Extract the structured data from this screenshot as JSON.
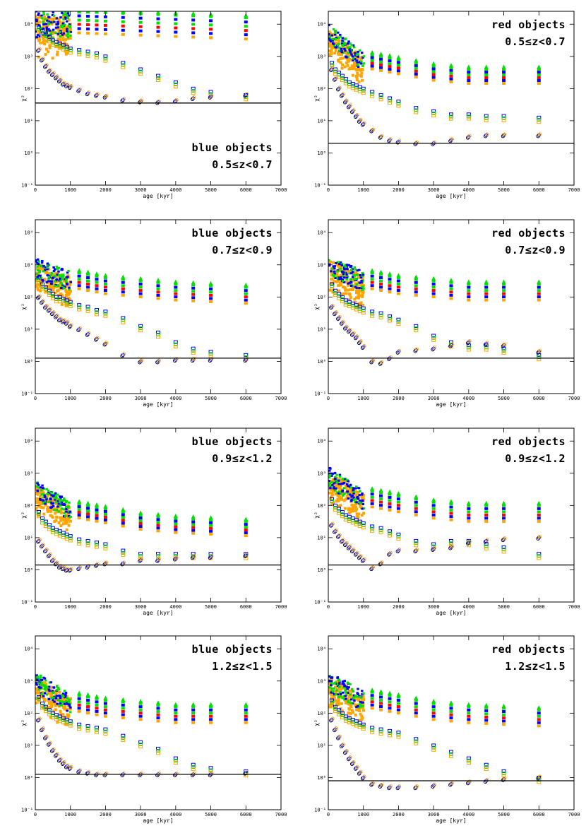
{
  "figure": {
    "xlabel": "age [kyr]",
    "ylabel": "χ²",
    "xticks": [
      0,
      1000,
      2000,
      3000,
      4000,
      5000,
      6000,
      7000
    ],
    "yticks": [
      {
        "v": -1,
        "text": "10⁻¹"
      },
      {
        "v": 0,
        "text": "10⁰"
      },
      {
        "v": 1,
        "text": "10¹"
      },
      {
        "v": 2,
        "text": "10²"
      },
      {
        "v": 3,
        "text": "10³"
      },
      {
        "v": 4,
        "text": "10⁴"
      }
    ],
    "colors": {
      "orange": "#FFA500",
      "blue": "#0000FF",
      "green": "#00E000",
      "red": "#FF0000",
      "black": "#000000"
    }
  },
  "chart_data": [
    {
      "type": "scatter",
      "id": "blue-0.5",
      "annotation_line1": "blue objects",
      "annotation_line2": "0.5≤z<0.7",
      "ann_pos": "bottom-right",
      "xlim": [
        0,
        7000
      ],
      "ylim_log10": [
        -1,
        4.4
      ],
      "hline_log10": 1.55,
      "upper_log10": [
        [
          0,
          4.4
        ],
        [
          1000,
          4.4
        ],
        [
          6000,
          4.2
        ]
      ],
      "upper_spread": 1.2,
      "track_x": [
        100,
        200,
        300,
        400,
        500,
        600,
        700,
        800,
        900,
        1000,
        1250,
        1500,
        1750,
        2000,
        2500,
        3000,
        3500,
        4000,
        4500,
        5000,
        6000
      ],
      "lower_log10": [
        3.2,
        2.9,
        2.7,
        2.55,
        2.45,
        2.35,
        2.25,
        2.15,
        2.1,
        2.05,
        1.95,
        1.85,
        1.8,
        1.75,
        1.65,
        1.6,
        1.58,
        1.62,
        1.7,
        1.75,
        1.8
      ],
      "mid_log10": [
        3.9,
        3.8,
        3.7,
        3.6,
        3.5,
        3.45,
        3.4,
        3.35,
        3.3,
        3.25,
        3.2,
        3.15,
        3.1,
        3.0,
        2.8,
        2.6,
        2.4,
        2.2,
        2.0,
        1.9,
        1.8
      ]
    },
    {
      "type": "scatter",
      "id": "red-0.5",
      "annotation_line1": "red objects",
      "annotation_line2": "0.5≤z<0.7",
      "ann_pos": "top-right",
      "xlim": [
        0,
        7000
      ],
      "ylim_log10": [
        -1,
        4.4
      ],
      "hline_log10": 0.3,
      "upper_log10": [
        [
          0,
          4.0
        ],
        [
          1000,
          3.1
        ],
        [
          2000,
          2.9
        ],
        [
          3000,
          2.7
        ],
        [
          4000,
          2.6
        ],
        [
          6000,
          2.6
        ]
      ],
      "upper_spread": 0.8,
      "track_x": [
        100,
        200,
        300,
        400,
        500,
        600,
        700,
        800,
        900,
        1000,
        1250,
        1500,
        1750,
        2000,
        2500,
        3000,
        3500,
        4000,
        4500,
        5000,
        6000
      ],
      "lower_log10": [
        2.6,
        2.3,
        2.0,
        1.8,
        1.6,
        1.45,
        1.3,
        1.15,
        1.0,
        0.9,
        0.7,
        0.5,
        0.4,
        0.35,
        0.3,
        0.3,
        0.4,
        0.5,
        0.55,
        0.55,
        0.55
      ],
      "mid_log10": [
        2.8,
        2.6,
        2.5,
        2.4,
        2.3,
        2.2,
        2.15,
        2.1,
        2.05,
        2.0,
        1.9,
        1.8,
        1.7,
        1.6,
        1.4,
        1.3,
        1.2,
        1.2,
        1.15,
        1.15,
        1.1
      ]
    },
    {
      "type": "scatter",
      "id": "blue-0.7",
      "annotation_line1": "blue objects",
      "annotation_line2": "0.7≤z<0.9",
      "ann_pos": "top-right",
      "xlim": [
        0,
        7000
      ],
      "ylim_log10": [
        -1,
        4.4
      ],
      "hline_log10": 0.1,
      "upper_log10": [
        [
          0,
          3.2
        ],
        [
          1000,
          2.8
        ],
        [
          2000,
          2.6
        ],
        [
          3000,
          2.5
        ],
        [
          4000,
          2.4
        ],
        [
          6000,
          2.3
        ]
      ],
      "upper_spread": 0.9,
      "track_x": [
        100,
        200,
        300,
        400,
        500,
        600,
        700,
        800,
        900,
        1000,
        1250,
        1500,
        1750,
        2000,
        2500,
        3000,
        3500,
        4000,
        4500,
        5000,
        6000
      ],
      "lower_log10": [
        2.0,
        1.85,
        1.7,
        1.6,
        1.5,
        1.4,
        1.3,
        1.25,
        1.2,
        1.1,
        1.0,
        0.85,
        0.7,
        0.55,
        0.2,
        0.0,
        0.0,
        0.05,
        0.05,
        0.05,
        0.05
      ],
      "mid_log10": [
        2.6,
        2.4,
        2.3,
        2.2,
        2.1,
        2.0,
        2.0,
        1.95,
        1.9,
        1.85,
        1.75,
        1.7,
        1.6,
        1.55,
        1.35,
        1.1,
        0.9,
        0.6,
        0.4,
        0.3,
        0.2
      ]
    },
    {
      "type": "scatter",
      "id": "red-0.7",
      "annotation_line1": "red objects",
      "annotation_line2": "0.7≤z<0.9",
      "ann_pos": "top-right",
      "xlim": [
        0,
        7000
      ],
      "ylim_log10": [
        -1,
        4.4
      ],
      "hline_log10": 0.1,
      "upper_log10": [
        [
          0,
          3.3
        ],
        [
          1000,
          2.8
        ],
        [
          2000,
          2.6
        ],
        [
          3000,
          2.5
        ],
        [
          4000,
          2.4
        ],
        [
          6000,
          2.4
        ]
      ],
      "upper_spread": 0.9,
      "track_x": [
        100,
        200,
        300,
        400,
        500,
        600,
        700,
        800,
        900,
        1000,
        1250,
        1500,
        1750,
        2000,
        2500,
        3000,
        3500,
        4000,
        4500,
        5000,
        6000
      ],
      "lower_log10": [
        1.7,
        1.5,
        1.35,
        1.2,
        1.05,
        0.95,
        0.85,
        0.75,
        0.6,
        0.45,
        0.0,
        -0.05,
        0.1,
        0.3,
        0.35,
        0.4,
        0.5,
        0.6,
        0.55,
        0.5,
        0.3
      ],
      "mid_log10": [
        2.4,
        2.2,
        2.1,
        2.0,
        1.9,
        1.85,
        1.8,
        1.75,
        1.7,
        1.65,
        1.55,
        1.5,
        1.4,
        1.3,
        1.1,
        0.8,
        0.6,
        0.5,
        0.5,
        0.4,
        0.2
      ]
    },
    {
      "type": "scatter",
      "id": "blue-0.9",
      "annotation_line1": "blue objects",
      "annotation_line2": "0.9≤z<1.2",
      "ann_pos": "top-right",
      "xlim": [
        0,
        7000
      ],
      "ylim_log10": [
        -1,
        4.4
      ],
      "hline_log10": 0.15,
      "upper_log10": [
        [
          0,
          2.8
        ],
        [
          1000,
          2.1
        ],
        [
          2000,
          1.9
        ],
        [
          3000,
          1.7
        ],
        [
          4000,
          1.6
        ],
        [
          6000,
          1.5
        ]
      ],
      "upper_spread": 0.8,
      "track_x": [
        100,
        200,
        300,
        400,
        500,
        600,
        700,
        800,
        900,
        1000,
        1250,
        1500,
        1750,
        2000,
        2500,
        3000,
        3500,
        4000,
        4500,
        5000,
        6000
      ],
      "lower_log10": [
        0.9,
        0.75,
        0.6,
        0.45,
        0.3,
        0.2,
        0.1,
        0.05,
        0.0,
        0.0,
        0.05,
        0.1,
        0.15,
        0.2,
        0.2,
        0.3,
        0.3,
        0.35,
        0.4,
        0.4,
        0.45
      ],
      "mid_log10": [
        1.8,
        1.6,
        1.5,
        1.4,
        1.3,
        1.25,
        1.2,
        1.15,
        1.1,
        1.05,
        0.95,
        0.9,
        0.85,
        0.8,
        0.6,
        0.5,
        0.5,
        0.5,
        0.5,
        0.5,
        0.5
      ]
    },
    {
      "type": "scatter",
      "id": "red-0.9",
      "annotation_line1": "red objects",
      "annotation_line2": "0.9≤z<1.2",
      "ann_pos": "top-right",
      "xlim": [
        0,
        7000
      ],
      "ylim_log10": [
        -1,
        4.4
      ],
      "hline_log10": 0.15,
      "upper_log10": [
        [
          0,
          3.2
        ],
        [
          1000,
          2.5
        ],
        [
          2000,
          2.3
        ],
        [
          3000,
          2.1
        ],
        [
          4000,
          2.0
        ],
        [
          6000,
          2.0
        ]
      ],
      "upper_spread": 0.9,
      "track_x": [
        100,
        200,
        300,
        400,
        500,
        600,
        700,
        800,
        900,
        1000,
        1250,
        1500,
        1750,
        2000,
        2500,
        3000,
        3500,
        4000,
        4500,
        5000,
        6000
      ],
      "lower_log10": [
        1.4,
        1.2,
        1.05,
        0.9,
        0.8,
        0.7,
        0.6,
        0.5,
        0.4,
        0.3,
        0.05,
        0.2,
        0.5,
        0.6,
        0.6,
        0.65,
        0.7,
        0.85,
        0.9,
        0.95,
        1.0
      ],
      "mid_log10": [
        2.2,
        2.0,
        1.9,
        1.8,
        1.7,
        1.65,
        1.6,
        1.55,
        1.5,
        1.45,
        1.35,
        1.3,
        1.2,
        1.1,
        0.9,
        0.8,
        0.9,
        0.9,
        0.8,
        0.7,
        0.5
      ]
    },
    {
      "type": "scatter",
      "id": "blue-1.2",
      "annotation_line1": "blue objects",
      "annotation_line2": "1.2≤z<1.5",
      "ann_pos": "top-right",
      "xlim": [
        0,
        7000
      ],
      "ylim_log10": [
        -1,
        4.4
      ],
      "hline_log10": 0.1,
      "upper_log10": [
        [
          0,
          3.3
        ],
        [
          1000,
          2.6
        ],
        [
          2000,
          2.4
        ],
        [
          3000,
          2.3
        ],
        [
          4000,
          2.2
        ],
        [
          6000,
          2.2
        ]
      ],
      "upper_spread": 0.9,
      "track_x": [
        100,
        200,
        300,
        400,
        500,
        600,
        700,
        800,
        900,
        1000,
        1250,
        1500,
        1750,
        2000,
        2500,
        3000,
        3500,
        4000,
        4500,
        5000,
        6000
      ],
      "lower_log10": [
        1.8,
        1.5,
        1.25,
        1.05,
        0.85,
        0.7,
        0.55,
        0.45,
        0.35,
        0.3,
        0.2,
        0.15,
        0.1,
        0.1,
        0.1,
        0.1,
        0.1,
        0.1,
        0.1,
        0.1,
        0.15
      ],
      "mid_log10": [
        2.5,
        2.3,
        2.2,
        2.1,
        2.0,
        1.95,
        1.9,
        1.85,
        1.8,
        1.75,
        1.65,
        1.6,
        1.55,
        1.5,
        1.3,
        1.1,
        0.9,
        0.6,
        0.4,
        0.3,
        0.2
      ]
    },
    {
      "type": "scatter",
      "id": "red-1.2",
      "annotation_line1": "red objects",
      "annotation_line2": "1.2≤z<1.5",
      "ann_pos": "top-right",
      "xlim": [
        0,
        7000
      ],
      "ylim_log10": [
        -1,
        4.4
      ],
      "hline_log10": -0.1,
      "upper_log10": [
        [
          0,
          3.3
        ],
        [
          1000,
          2.7
        ],
        [
          2000,
          2.5
        ],
        [
          3000,
          2.3
        ],
        [
          4000,
          2.2
        ],
        [
          6000,
          2.1
        ]
      ],
      "upper_spread": 0.9,
      "track_x": [
        100,
        200,
        300,
        400,
        500,
        600,
        700,
        800,
        900,
        1000,
        1250,
        1500,
        1750,
        2000,
        2500,
        3000,
        3500,
        4000,
        4500,
        5000,
        6000
      ],
      "lower_log10": [
        1.8,
        1.5,
        1.25,
        1.0,
        0.8,
        0.6,
        0.45,
        0.3,
        0.15,
        0.0,
        -0.2,
        -0.25,
        -0.3,
        -0.3,
        -0.3,
        -0.25,
        -0.2,
        -0.15,
        -0.1,
        -0.05,
        -0.0
      ],
      "mid_log10": [
        2.4,
        2.2,
        2.1,
        2.0,
        1.9,
        1.85,
        1.8,
        1.75,
        1.7,
        1.65,
        1.55,
        1.5,
        1.45,
        1.4,
        1.2,
        1.0,
        0.8,
        0.6,
        0.4,
        0.2,
        0.0
      ]
    }
  ]
}
